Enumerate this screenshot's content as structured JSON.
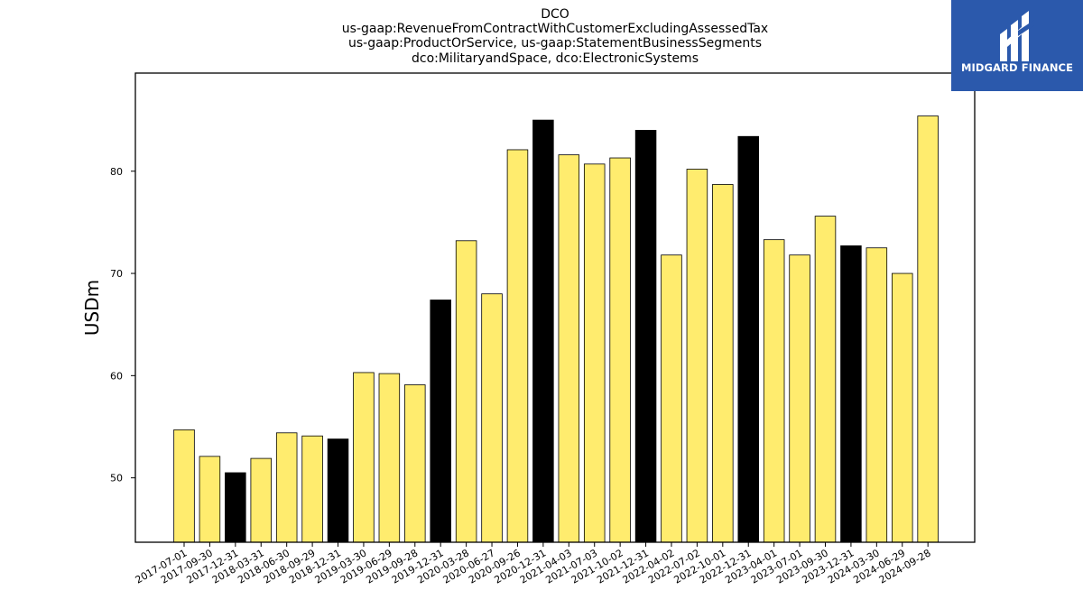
{
  "logo": {
    "text": "MIDGARD FINANCE"
  },
  "chart_data": {
    "type": "bar",
    "title_lines": [
      "DCO",
      "us-gaap:RevenueFromContractWithCustomerExcludingAssessedTax",
      "us-gaap:ProductOrService, us-gaap:StatementBusinessSegments",
      "dco:MilitaryandSpace, dco:ElectronicSystems"
    ],
    "xlabel": "",
    "ylabel": "USDm",
    "ylim": [
      43.7,
      89.6
    ],
    "yticks": [
      50,
      60,
      70,
      80
    ],
    "categories": [
      "2017-07-01",
      "2017-09-30",
      "2017-12-31",
      "2018-03-31",
      "2018-06-30",
      "2018-09-29",
      "2018-12-31",
      "2019-03-30",
      "2019-06-29",
      "2019-09-28",
      "2019-12-31",
      "2020-03-28",
      "2020-06-27",
      "2020-09-26",
      "2020-12-31",
      "2021-04-03",
      "2021-07-03",
      "2021-10-02",
      "2021-12-31",
      "2022-04-02",
      "2022-07-02",
      "2022-10-01",
      "2022-12-31",
      "2023-04-01",
      "2023-07-01",
      "2023-09-30",
      "2023-12-31",
      "2024-03-30",
      "2024-06-29",
      "2024-09-28"
    ],
    "values": [
      54.7,
      52.1,
      50.5,
      51.9,
      54.4,
      54.1,
      53.8,
      60.3,
      60.2,
      59.1,
      67.4,
      73.2,
      68.0,
      82.1,
      85.0,
      81.6,
      80.7,
      81.3,
      84.0,
      71.8,
      80.2,
      78.7,
      83.4,
      73.3,
      71.8,
      75.6,
      72.7,
      72.5,
      70.0,
      85.4
    ],
    "highlight_categories": [
      "2017-12-31",
      "2018-12-31",
      "2019-12-31",
      "2020-12-31",
      "2021-12-31",
      "2022-12-31",
      "2023-12-31"
    ],
    "colors": {
      "bar": "#ffec6e",
      "highlight": "#000000",
      "edge": "#000000"
    },
    "grid": false,
    "legend": "none"
  }
}
